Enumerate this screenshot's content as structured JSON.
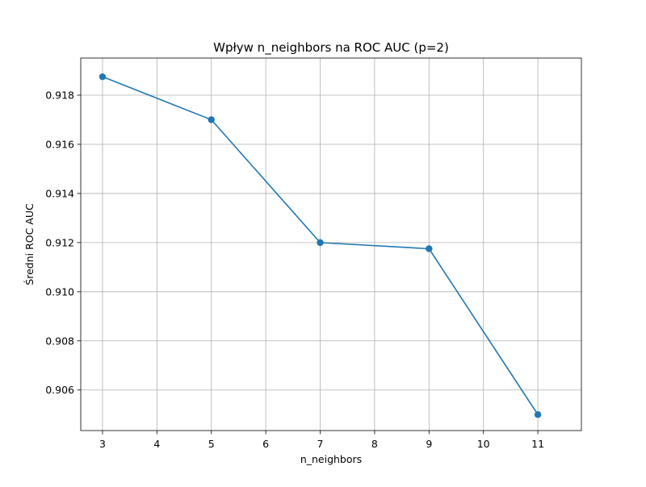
{
  "chart_data": {
    "type": "line",
    "title": "Wpływ n_neighbors na ROC AUC (p=2)",
    "xlabel": "n_neighbors",
    "ylabel": "Średni ROC AUC",
    "x": [
      3,
      5,
      7,
      9,
      11
    ],
    "series": [
      {
        "values": [
          0.91875,
          0.917,
          0.912,
          0.91175,
          0.905
        ],
        "color": "#1f77b4",
        "marker": "circle"
      }
    ],
    "xlim": [
      2.6,
      11.8
    ],
    "ylim": [
      0.90435,
      0.91951
    ],
    "xticks": [
      3,
      4,
      5,
      6,
      7,
      8,
      9,
      10,
      11
    ],
    "yticks": [
      0.906,
      0.908,
      0.91,
      0.912,
      0.914,
      0.916,
      0.918
    ],
    "ytick_labels": [
      "0.906",
      "0.908",
      "0.910",
      "0.912",
      "0.914",
      "0.916",
      "0.918"
    ],
    "grid": true,
    "legend": "none"
  }
}
